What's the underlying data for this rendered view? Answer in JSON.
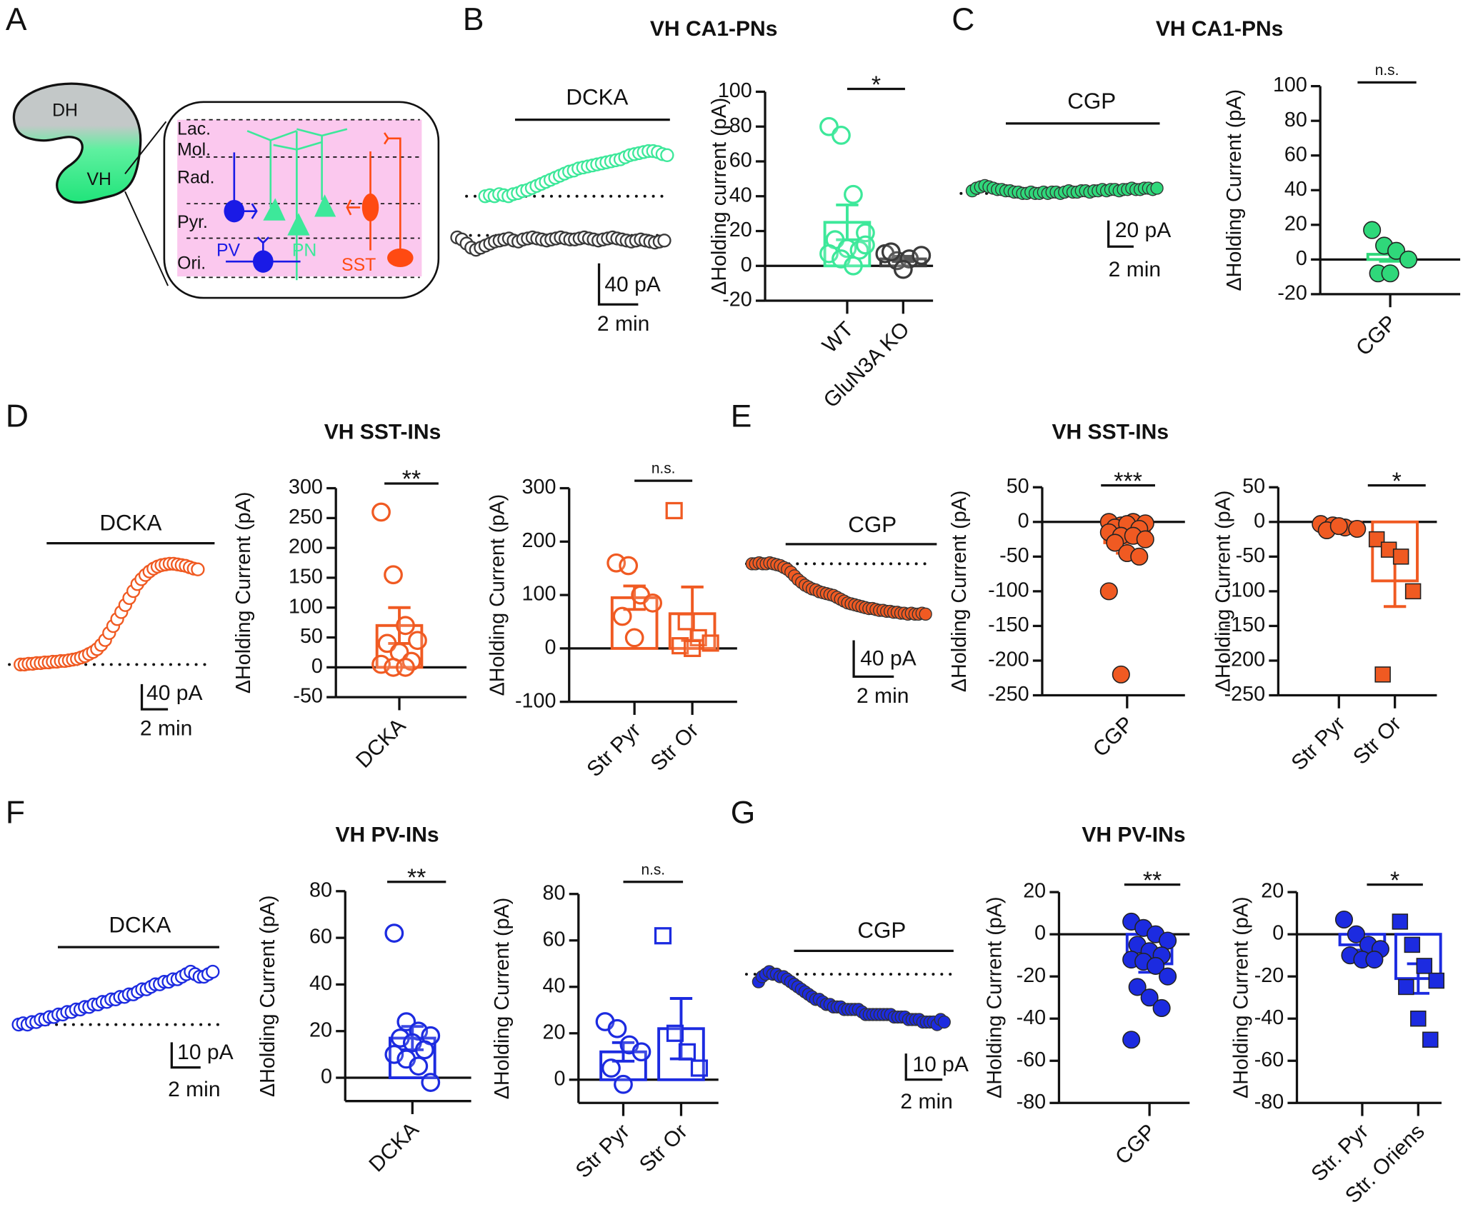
{
  "panel_letters": {
    "A": "A",
    "B": "B",
    "C": "C",
    "D": "D",
    "E": "E",
    "F": "F",
    "G": "G"
  },
  "titles": {
    "B": "VH CA1-PNs",
    "C": "VH CA1-PNs",
    "D": "VH SST-INs",
    "E": "VH SST-INs",
    "F": "VH PV-INs",
    "G": "VH PV-INs"
  },
  "diagram": {
    "regions": {
      "dh": "DH",
      "vh": "VH"
    },
    "layers": [
      "Lac.",
      "Mol.",
      "Rad.",
      "Pyr.",
      "Ori."
    ],
    "cells": {
      "pv": "PV",
      "pn": "PN",
      "sst": "SST"
    },
    "colors": {
      "pink": "#fbc8ee",
      "pv": "#1a1ae6",
      "pn": "#3de89a",
      "sst": "#ff4a12",
      "dh": "#c3c8c8",
      "vh": "#2ee882"
    }
  },
  "colors": {
    "green_open": "#3de89a",
    "green_fill": "#2fd87a",
    "ko": "#3a3a3a",
    "orange": "#f05a22",
    "blue": "#1c2be0"
  },
  "chart_data": [
    {
      "panel": "B",
      "type": "scatter",
      "drug": "DCKA",
      "scale_y": "40 pA",
      "scale_x": "2 min",
      "series": [
        {
          "color": "#3de89a",
          "filled": false,
          "values": [
            0,
            1,
            0,
            2,
            1,
            0,
            2,
            3,
            5,
            6,
            8,
            10,
            12,
            14,
            16,
            18,
            20,
            22,
            24,
            25,
            27,
            28,
            29,
            30,
            31,
            32,
            33,
            34,
            35,
            36,
            38,
            40,
            41,
            42,
            43,
            44,
            44,
            43,
            41,
            40
          ]
        },
        {
          "color": "#3a3a3a",
          "filled": false,
          "values": [
            -2,
            -4,
            -8,
            -12,
            -14,
            -12,
            -10,
            -8,
            -6,
            -5,
            -4,
            -3,
            -5,
            -6,
            -4,
            -3,
            -2,
            -3,
            -4,
            -5,
            -4,
            -3,
            -2,
            -3,
            -4,
            -4,
            -3,
            -2,
            -3,
            -4,
            -5,
            -4,
            -3,
            -2,
            -3,
            -4,
            -5,
            -6,
            -5,
            -4,
            -5,
            -6,
            -7,
            -6,
            -5
          ]
        }
      ]
    },
    {
      "panel": "B",
      "type": "bar",
      "ylabel": "ΔHolding current (pA)",
      "ylim": [
        -20,
        100
      ],
      "yticks": [
        100,
        80,
        60,
        40,
        20,
        0,
        -20
      ],
      "significance": "*",
      "categories": [
        "WT",
        "GluN3A KO"
      ],
      "groups": [
        {
          "color": "#3de89a",
          "marker": "circle",
          "filled": false,
          "mean": 25,
          "sem": 10,
          "points": [
            80,
            75,
            41,
            19,
            15,
            10,
            9,
            7,
            4,
            0,
            12
          ]
        },
        {
          "color": "#3a3a3a",
          "marker": "circle",
          "filled": false,
          "mean": 4,
          "sem": 1.5,
          "points": [
            7,
            3,
            4,
            6,
            8,
            -2
          ]
        }
      ]
    },
    {
      "panel": "C",
      "type": "scatter",
      "drug": "CGP",
      "scale_y": "20 pA",
      "scale_x": "2 min",
      "series": [
        {
          "color": "#2fd87a",
          "filled": true,
          "values": [
            2,
            4,
            5,
            6,
            5,
            4,
            3,
            3,
            2,
            2,
            1,
            1,
            0,
            0,
            1,
            0,
            0,
            1,
            0,
            1,
            1,
            0,
            1,
            2,
            1,
            1,
            2,
            2,
            1,
            2,
            2,
            3,
            2,
            3,
            3,
            2,
            3,
            3,
            4,
            3,
            3,
            4,
            4,
            3,
            4
          ]
        }
      ]
    },
    {
      "panel": "C",
      "type": "bar",
      "ylabel": "ΔHolding Current (pA)",
      "ylim": [
        -20,
        100
      ],
      "yticks": [
        100,
        80,
        60,
        40,
        20,
        0,
        -20
      ],
      "significance": "n.s.",
      "categories": [
        "CGP"
      ],
      "groups": [
        {
          "color": "#2fd87a",
          "marker": "circle",
          "filled": true,
          "mean": 3,
          "sem": 4,
          "points": [
            17,
            8,
            5,
            0,
            -8,
            -8
          ]
        }
      ]
    },
    {
      "panel": "D",
      "type": "scatter",
      "drug": "DCKA",
      "scale_y": "40 pA",
      "scale_x": "2 min",
      "series": [
        {
          "color": "#f05a22",
          "filled": false,
          "values": [
            0,
            0,
            1,
            1,
            2,
            2,
            3,
            3,
            4,
            4,
            5,
            5,
            6,
            7,
            8,
            10,
            12,
            15,
            18,
            22,
            28,
            35,
            45,
            55,
            65,
            75,
            85,
            95,
            105,
            115,
            122,
            128,
            133,
            137,
            140,
            142,
            143,
            144,
            144,
            143,
            142,
            141,
            139,
            137,
            136
          ]
        }
      ]
    },
    {
      "panel": "D",
      "type": "bar",
      "ylabel": "ΔHolding Current (pA)",
      "ylim": [
        -50,
        300
      ],
      "yticks": [
        300,
        250,
        200,
        150,
        100,
        50,
        0,
        -50
      ],
      "significance": "**",
      "categories": [
        "DCKA"
      ],
      "groups": [
        {
          "color": "#f05a22",
          "marker": "circle",
          "filled": false,
          "mean": 70,
          "sem": 30,
          "points": [
            260,
            155,
            70,
            45,
            40,
            25,
            10,
            5,
            0,
            0
          ]
        }
      ]
    },
    {
      "panel": "D",
      "type": "bar",
      "ylabel": "ΔHolding Current (pA)",
      "ylim": [
        -100,
        300
      ],
      "yticks": [
        300,
        200,
        100,
        0,
        -100
      ],
      "significance": "n.s.",
      "categories": [
        "Str Pyr",
        "Str Or"
      ],
      "groups": [
        {
          "color": "#f05a22",
          "marker": "circle",
          "filled": false,
          "mean": 95,
          "sem": 22,
          "points": [
            160,
            155,
            100,
            85,
            60,
            20
          ]
        },
        {
          "color": "#f05a22",
          "marker": "square",
          "filled": false,
          "mean": 65,
          "sem": 50,
          "points": [
            258,
            50,
            20,
            10,
            5,
            0
          ]
        }
      ]
    },
    {
      "panel": "E",
      "type": "scatter",
      "drug": "CGP",
      "scale_y": "40 pA",
      "scale_x": "2 min",
      "series": [
        {
          "color": "#f05a22",
          "filled": true,
          "values": [
            0,
            0,
            1,
            0,
            0,
            1,
            0,
            -1,
            -2,
            -4,
            -6,
            -9,
            -13,
            -17,
            -20,
            -23,
            -25,
            -27,
            -28,
            -30,
            -31,
            -32,
            -33,
            -34,
            -36,
            -38,
            -40,
            -42,
            -43,
            -44,
            -45,
            -46,
            -47,
            -48,
            -48,
            -49,
            -50,
            -50,
            -51,
            -51,
            -52,
            -52,
            -53,
            -53,
            -54,
            -53,
            -54,
            -54,
            -53,
            -54
          ]
        }
      ]
    },
    {
      "panel": "E",
      "type": "bar",
      "ylabel": "ΔHolding Current (pA)",
      "ylim": [
        -250,
        50
      ],
      "yticks": [
        50,
        0,
        -50,
        -100,
        -150,
        -200,
        -250
      ],
      "significance": "***",
      "categories": [
        "CGP"
      ],
      "groups": [
        {
          "color": "#f05a22",
          "marker": "circle",
          "filled": true,
          "mean": -30,
          "sem": 15,
          "points": [
            0,
            -5,
            0,
            -2,
            -8,
            -3,
            -10,
            -15,
            -20,
            -20,
            -25,
            -30,
            -45,
            -50,
            -100,
            -220
          ]
        }
      ]
    },
    {
      "panel": "E",
      "type": "bar",
      "ylabel": "ΔHolding Current (pA)",
      "ylim": [
        -250,
        50
      ],
      "yticks": [
        50,
        0,
        -50,
        -100,
        -150,
        -200,
        -250
      ],
      "significance": "*",
      "categories": [
        "Str Pyr",
        "Str Or"
      ],
      "groups": [
        {
          "color": "#f05a22",
          "marker": "circle",
          "filled": true,
          "mean": -7,
          "sem": 2,
          "points": [
            -3,
            -5,
            -8,
            -10,
            -12,
            -6
          ]
        },
        {
          "color": "#f05a22",
          "marker": "square",
          "filled": true,
          "mean": -85,
          "sem": 37,
          "points": [
            -25,
            -40,
            -50,
            -100,
            -220
          ]
        }
      ]
    },
    {
      "panel": "F",
      "type": "scatter",
      "drug": "DCKA",
      "scale_y": "10 pA",
      "scale_x": "2 min",
      "series": [
        {
          "color": "#1c2be0",
          "filled": false,
          "values": [
            0,
            0.5,
            0,
            1,
            1,
            2,
            2,
            3,
            3,
            4,
            4,
            5,
            5,
            6,
            6,
            7,
            7,
            8,
            8,
            9,
            9,
            10,
            10,
            11,
            11,
            12,
            12,
            13,
            14,
            14,
            15,
            16,
            16,
            17,
            17,
            18,
            18,
            19,
            20,
            21,
            20,
            19,
            19,
            20,
            21
          ]
        }
      ]
    },
    {
      "panel": "F",
      "type": "bar",
      "ylabel": "ΔHolding Current (pA)",
      "ylim": [
        -10,
        80
      ],
      "yticks": [
        80,
        60,
        40,
        20,
        0
      ],
      "significance": "**",
      "categories": [
        "DCKA"
      ],
      "groups": [
        {
          "color": "#1c2be0",
          "marker": "circle",
          "filled": false,
          "mean": 17,
          "sem": 5,
          "points": [
            62,
            24,
            20,
            18,
            17,
            15,
            12,
            10,
            8,
            5,
            -2
          ]
        }
      ]
    },
    {
      "panel": "F",
      "type": "bar",
      "ylabel": "ΔHolding Current (pA)",
      "ylim": [
        -10,
        80
      ],
      "yticks": [
        80,
        60,
        40,
        20,
        0
      ],
      "significance": "n.s.",
      "categories": [
        "Str Pyr",
        "Str Or"
      ],
      "groups": [
        {
          "color": "#1c2be0",
          "marker": "circle",
          "filled": false,
          "mean": 12,
          "sem": 4,
          "points": [
            25,
            22,
            15,
            12,
            5,
            -2
          ]
        },
        {
          "color": "#1c2be0",
          "marker": "square",
          "filled": false,
          "mean": 22,
          "sem": 13,
          "points": [
            62,
            20,
            12,
            5
          ]
        }
      ]
    },
    {
      "panel": "G",
      "type": "scatter",
      "drug": "CGP",
      "scale_y": "10 pA",
      "scale_x": "2 min",
      "series": [
        {
          "color": "#1c2be0",
          "filled": true,
          "values": [
            -3,
            -1,
            0,
            1,
            0,
            0,
            -1,
            -1,
            -2,
            -3,
            -4,
            -5,
            -6,
            -7,
            -8,
            -9,
            -10,
            -10,
            -11,
            -12,
            -12,
            -13,
            -13,
            -13,
            -14,
            -14,
            -14,
            -14,
            -14,
            -15,
            -16,
            -16,
            -16,
            -16,
            -16,
            -16,
            -16,
            -16,
            -17,
            -17,
            -17,
            -17,
            -18,
            -18,
            -18,
            -18,
            -19,
            -19,
            -19,
            -19,
            -20,
            -18,
            -19
          ]
        }
      ]
    },
    {
      "panel": "G",
      "type": "bar",
      "ylabel": "ΔHolding Current (pA)",
      "ylim": [
        -80,
        20
      ],
      "yticks": [
        20,
        0,
        -20,
        -40,
        -60,
        -80
      ],
      "significance": "**",
      "categories": [
        "CGP"
      ],
      "groups": [
        {
          "color": "#1c2be0",
          "marker": "circle",
          "filled": true,
          "mean": -14,
          "sem": 4,
          "points": [
            6,
            3,
            0,
            -3,
            -5,
            -8,
            -10,
            -12,
            -13,
            -15,
            -20,
            -25,
            -30,
            -35,
            -50
          ]
        }
      ]
    },
    {
      "panel": "G",
      "type": "bar",
      "ylabel": "ΔHolding Current (pA)",
      "ylim": [
        -80,
        20
      ],
      "yticks": [
        20,
        0,
        -20,
        -40,
        -60,
        -80
      ],
      "significance": "*",
      "categories": [
        "Str. Pyr",
        "Str. Oriens"
      ],
      "groups": [
        {
          "color": "#1c2be0",
          "marker": "circle",
          "filled": true,
          "mean": -5,
          "sem": 2.5,
          "points": [
            7,
            0,
            -5,
            -7,
            -10,
            -12,
            -12
          ]
        },
        {
          "color": "#1c2be0",
          "marker": "square",
          "filled": true,
          "mean": -21,
          "sem": 7,
          "points": [
            6,
            -5,
            -15,
            -22,
            -25,
            -40,
            -50
          ]
        }
      ]
    }
  ]
}
